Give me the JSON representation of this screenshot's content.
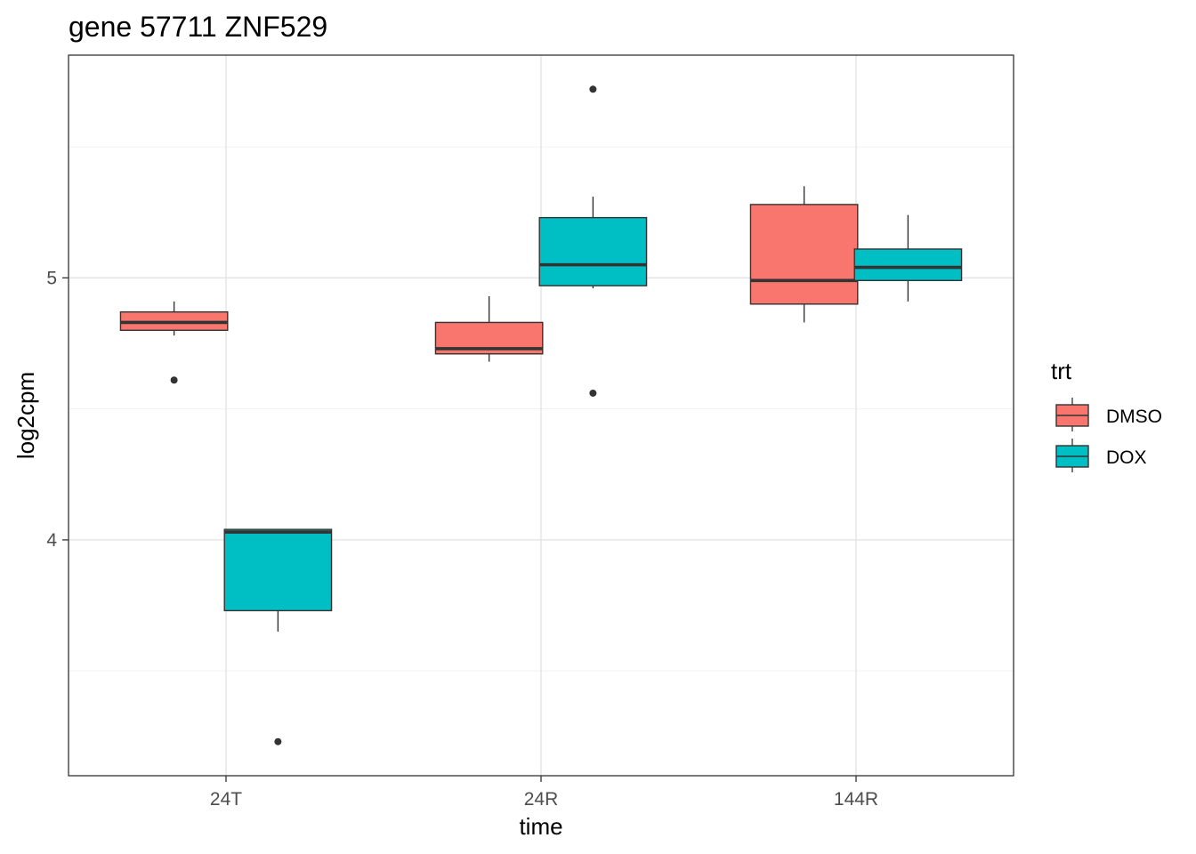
{
  "chart_data": {
    "type": "boxplot",
    "title": "gene 57711 ZNF529",
    "xlabel": "time",
    "ylabel": "log2cpm",
    "categories": [
      "24T",
      "24R",
      "144R"
    ],
    "ylim": [
      3.1,
      5.85
    ],
    "yticks": [
      4,
      5
    ],
    "grid": true,
    "legend": {
      "title": "trt",
      "position": "right",
      "entries": [
        {
          "name": "DMSO",
          "color": "#F8766D"
        },
        {
          "name": "DOX",
          "color": "#00BFC4"
        }
      ]
    },
    "series": [
      {
        "name": "DMSO",
        "color": "#F8766D",
        "boxes": [
          {
            "category": "24T",
            "whisker_low": 4.78,
            "q1": 4.8,
            "median": 4.83,
            "q3": 4.87,
            "whisker_high": 4.91,
            "outliers": [
              4.61
            ]
          },
          {
            "category": "24R",
            "whisker_low": 4.68,
            "q1": 4.71,
            "median": 4.73,
            "q3": 4.83,
            "whisker_high": 4.93,
            "outliers": []
          },
          {
            "category": "144R",
            "whisker_low": 4.83,
            "q1": 4.9,
            "median": 4.99,
            "q3": 5.28,
            "whisker_high": 5.35,
            "outliers": []
          }
        ]
      },
      {
        "name": "DOX",
        "color": "#00BFC4",
        "boxes": [
          {
            "category": "24T",
            "whisker_low": 3.65,
            "q1": 3.73,
            "median": 4.03,
            "q3": 4.04,
            "whisker_high": 4.04,
            "outliers": [
              3.23
            ]
          },
          {
            "category": "24R",
            "whisker_low": 4.96,
            "q1": 4.97,
            "median": 5.05,
            "q3": 5.23,
            "whisker_high": 5.31,
            "outliers": [
              5.72,
              4.56
            ]
          },
          {
            "category": "144R",
            "whisker_low": 4.91,
            "q1": 4.99,
            "median": 5.04,
            "q3": 5.11,
            "whisker_high": 5.24,
            "outliers": []
          }
        ]
      }
    ]
  }
}
